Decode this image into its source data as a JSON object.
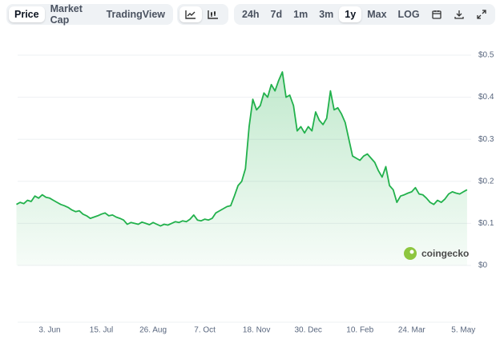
{
  "toolbar": {
    "tabs": [
      "Price",
      "Market Cap",
      "TradingView"
    ],
    "ranges": [
      "24h",
      "7d",
      "1m",
      "3m",
      "1y",
      "Max",
      "LOG"
    ]
  },
  "watermark": "coingecko",
  "chart_data": {
    "type": "area",
    "color": "#22b14c",
    "grid": true,
    "categories": [
      null,
      null,
      null,
      null,
      null,
      null,
      null,
      null,
      null,
      "3. Jun",
      null,
      null,
      null,
      null,
      null,
      null,
      null,
      null,
      null,
      null,
      null,
      null,
      null,
      "15. Jul",
      null,
      null,
      null,
      null,
      null,
      null,
      null,
      null,
      null,
      null,
      null,
      null,
      null,
      "26. Aug",
      null,
      null,
      null,
      null,
      null,
      null,
      null,
      null,
      null,
      null,
      null,
      null,
      null,
      "7. Oct",
      null,
      null,
      null,
      null,
      null,
      null,
      null,
      null,
      null,
      null,
      null,
      null,
      null,
      "18. Nov",
      null,
      null,
      null,
      null,
      null,
      null,
      null,
      null,
      null,
      null,
      null,
      null,
      null,
      "30. Dec",
      null,
      null,
      null,
      null,
      null,
      null,
      null,
      null,
      null,
      null,
      null,
      null,
      null,
      "10. Feb",
      null,
      null,
      null,
      null,
      null,
      null,
      null,
      null,
      null,
      null,
      null,
      null,
      null,
      "24. Mar",
      null,
      null,
      null,
      null,
      null,
      null,
      null,
      null,
      null,
      null,
      null,
      null,
      null,
      "5. May",
      null
    ],
    "values": [
      0.145,
      0.15,
      0.147,
      0.155,
      0.152,
      0.165,
      0.16,
      0.168,
      0.162,
      0.16,
      0.155,
      0.15,
      0.145,
      0.142,
      0.138,
      0.132,
      0.128,
      0.13,
      0.122,
      0.118,
      0.112,
      0.115,
      0.118,
      0.122,
      0.125,
      0.118,
      0.12,
      0.115,
      0.112,
      0.108,
      0.098,
      0.102,
      0.1,
      0.098,
      0.103,
      0.1,
      0.097,
      0.102,
      0.098,
      0.094,
      0.098,
      0.096,
      0.1,
      0.104,
      0.102,
      0.106,
      0.104,
      0.11,
      0.12,
      0.108,
      0.106,
      0.11,
      0.108,
      0.112,
      0.125,
      0.13,
      0.135,
      0.14,
      0.142,
      0.165,
      0.19,
      0.2,
      0.23,
      0.33,
      0.395,
      0.37,
      0.38,
      0.41,
      0.4,
      0.43,
      0.415,
      0.44,
      0.46,
      0.4,
      0.405,
      0.38,
      0.32,
      0.33,
      0.315,
      0.33,
      0.32,
      0.365,
      0.345,
      0.335,
      0.35,
      0.415,
      0.37,
      0.375,
      0.36,
      0.34,
      0.3,
      0.26,
      0.255,
      0.25,
      0.26,
      0.265,
      0.255,
      0.245,
      0.225,
      0.21,
      0.235,
      0.19,
      0.18,
      0.15,
      0.165,
      0.168,
      0.172,
      0.175,
      0.185,
      0.17,
      0.168,
      0.16,
      0.15,
      0.145,
      0.155,
      0.15,
      0.158,
      0.17,
      0.175,
      0.172,
      0.17,
      0.175,
      0.18
    ],
    "ylim": [
      0,
      0.5
    ],
    "yticks": [
      {
        "value": 0,
        "label": "$0"
      },
      {
        "value": 0.1,
        "label": "$0.1"
      },
      {
        "value": 0.2,
        "label": "$0.2"
      },
      {
        "value": 0.3,
        "label": "$0.3"
      },
      {
        "value": 0.4,
        "label": "$0.4"
      },
      {
        "value": 0.5,
        "label": "$0.5"
      }
    ]
  }
}
